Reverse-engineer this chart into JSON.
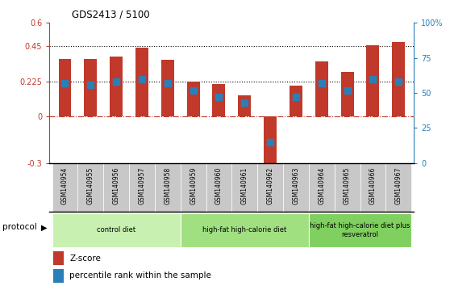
{
  "title": "GDS2413 / 5100",
  "samples": [
    "GSM140954",
    "GSM140955",
    "GSM140956",
    "GSM140957",
    "GSM140958",
    "GSM140959",
    "GSM140960",
    "GSM140961",
    "GSM140962",
    "GSM140963",
    "GSM140964",
    "GSM140965",
    "GSM140966",
    "GSM140967"
  ],
  "zscore": [
    0.37,
    0.37,
    0.385,
    0.44,
    0.365,
    0.225,
    0.205,
    0.135,
    -0.325,
    0.195,
    0.355,
    0.285,
    0.455,
    0.475
  ],
  "pct_rank": [
    57,
    56,
    58,
    60,
    57,
    52,
    47,
    43,
    15,
    47,
    57,
    52,
    60,
    58
  ],
  "bar_color": "#c0392b",
  "dot_color": "#2980b9",
  "ylim_left": [
    -0.3,
    0.6
  ],
  "ylim_right": [
    0,
    100
  ],
  "yticks_left": [
    -0.3,
    0.0,
    0.225,
    0.45,
    0.6
  ],
  "yticks_right": [
    0,
    25,
    50,
    75,
    100
  ],
  "ytick_labels_left": [
    "-0.3",
    "0",
    "0.225",
    "0.45",
    "0.6"
  ],
  "ytick_labels_right": [
    "0",
    "25",
    "50",
    "75",
    "100%"
  ],
  "hline_dotted": [
    0.225,
    0.45
  ],
  "hline_dashdot": 0.0,
  "protocols": [
    {
      "label": "control diet",
      "start": 0,
      "end": 4,
      "color": "#c8f0b0"
    },
    {
      "label": "high-fat high-calorie diet",
      "start": 5,
      "end": 9,
      "color": "#a0e080"
    },
    {
      "label": "high-fat high-calorie diet plus\nresveratrol",
      "start": 10,
      "end": 13,
      "color": "#80d060"
    }
  ],
  "legend_zscore": "Z-score",
  "legend_pct": "percentile rank within the sample",
  "xlabel_protocol": "protocol",
  "bg_plot": "#ffffff",
  "bg_xtick": "#c8c8c8",
  "left_axis_color": "#c0392b",
  "right_axis_color": "#2980b9",
  "bar_width": 0.5,
  "dot_size": 28
}
